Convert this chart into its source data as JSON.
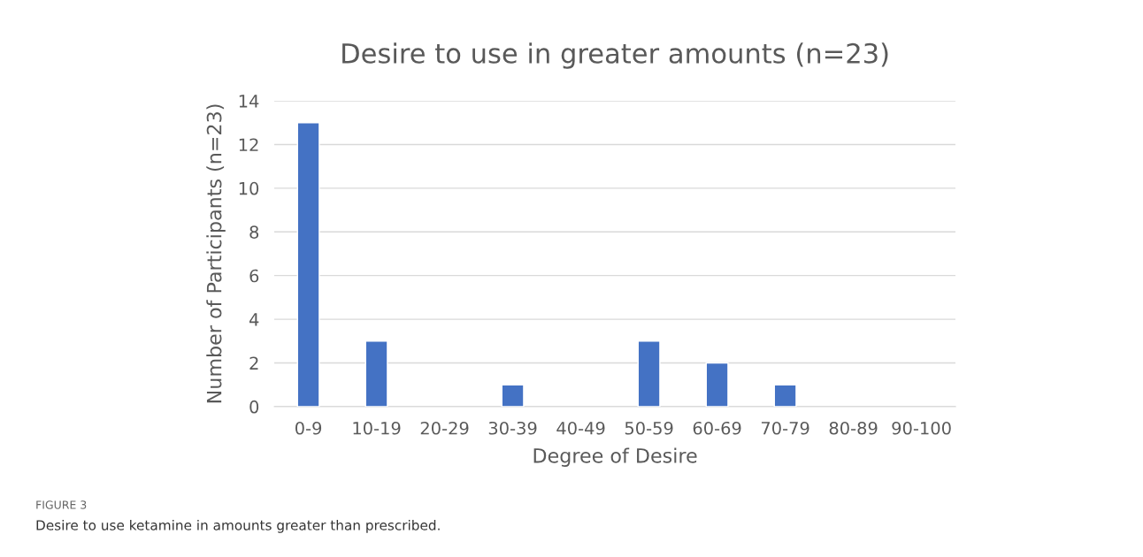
{
  "chart_data": {
    "type": "bar",
    "title": "Desire to use in greater amounts (n=23)",
    "xlabel": "Degree of Desire",
    "ylabel": "Number of Participants (n=23)",
    "categories": [
      "0-9",
      "10-19",
      "20-29",
      "30-39",
      "40-49",
      "50-59",
      "60-69",
      "70-79",
      "80-89",
      "90-100"
    ],
    "values": [
      13,
      3,
      0,
      1,
      0,
      3,
      2,
      1,
      0,
      0
    ],
    "color": "#4472c4",
    "ylim": [
      0,
      14
    ],
    "yticks": [
      0,
      2,
      4,
      6,
      8,
      10,
      12,
      14
    ],
    "grid": "y",
    "annotations": [
      "FIGURE 3",
      "Desire to use ketamine in amounts greater than prescribed."
    ]
  }
}
